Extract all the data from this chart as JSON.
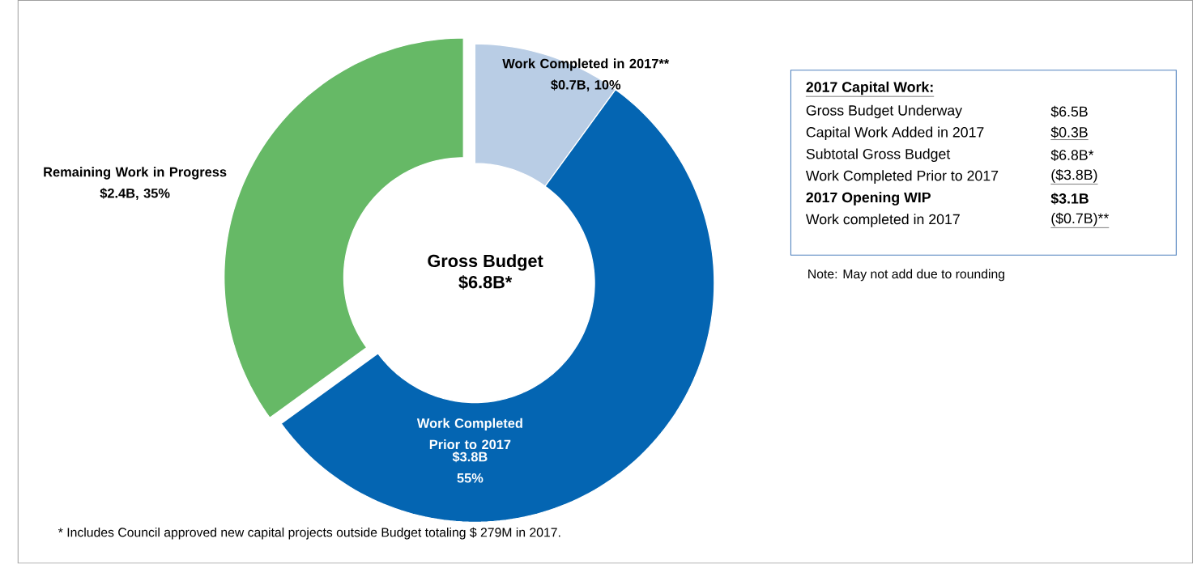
{
  "chart_data": {
    "type": "donut",
    "title": "Gross Budget",
    "subtitle": "$6.8B*",
    "categories": [
      "Work Completed in 2017**",
      "Work Completed Prior to 2017",
      "Remaining Work in Progress"
    ],
    "values": [
      10,
      55,
      35
    ],
    "value_labels": [
      "$0.7B, 10%",
      "$3.8B 55%",
      "$2.4B, 35%"
    ],
    "colors": [
      "#b9cde5",
      "#0465b2",
      "#66b966"
    ],
    "annotations": [
      "2017 Capital Work:",
      "Gross Budget Underway",
      "$6.5B",
      "Capital Work Added in 2017",
      "$0.3B",
      "Subtotal Gross Budget",
      "$6.8B*",
      "Work Completed Prior to 2017",
      "($3.8B)",
      "2017 Opening WIP",
      "$3.1B",
      "Work completed in 2017",
      "($0.7B)**",
      "Note: May not add due to rounding",
      "* Includes Council approved new capital projects outside Budget totaling $ 279M in 2017."
    ]
  }
}
